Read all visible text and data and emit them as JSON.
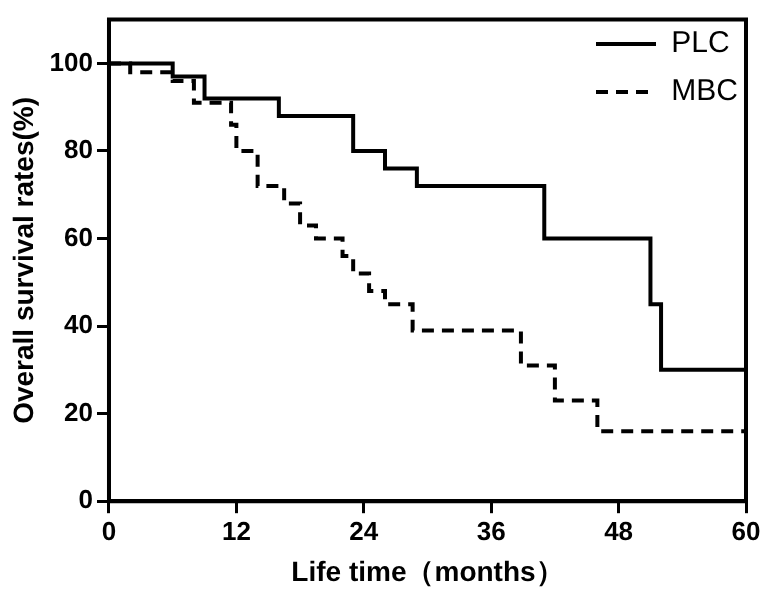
{
  "chart_data": {
    "type": "step",
    "xlabel": "Life time（months）",
    "ylabel": "Overall survival rates(%)",
    "xlim": [
      0,
      60
    ],
    "xticks": [
      0,
      12,
      24,
      36,
      48,
      60
    ],
    "ylim": [
      0,
      110
    ],
    "yticks": [
      0,
      20,
      40,
      60,
      80,
      100
    ],
    "grid": false,
    "legend": "top right",
    "marker": "none",
    "series": [
      {
        "name": "PLC",
        "color": "#000000",
        "line_style": "solid",
        "x": [
          0,
          6,
          9,
          16,
          23,
          26,
          29,
          41,
          51,
          52,
          60
        ],
        "values": [
          100,
          97,
          92,
          88,
          80,
          76,
          72,
          60,
          45,
          30,
          30
        ]
      },
      {
        "name": "MBC",
        "color": "#000000",
        "line_style": "dashed",
        "x": [
          0,
          2,
          6,
          8,
          11.5,
          12,
          14,
          16.5,
          18,
          19.5,
          22,
          23,
          24.5,
          26,
          28.6,
          38.8,
          42,
          46,
          60
        ],
        "values": [
          100,
          98,
          96,
          91,
          86,
          80,
          72,
          68,
          63,
          60,
          56,
          52,
          48,
          45,
          39,
          31,
          23,
          16,
          16
        ]
      }
    ]
  }
}
